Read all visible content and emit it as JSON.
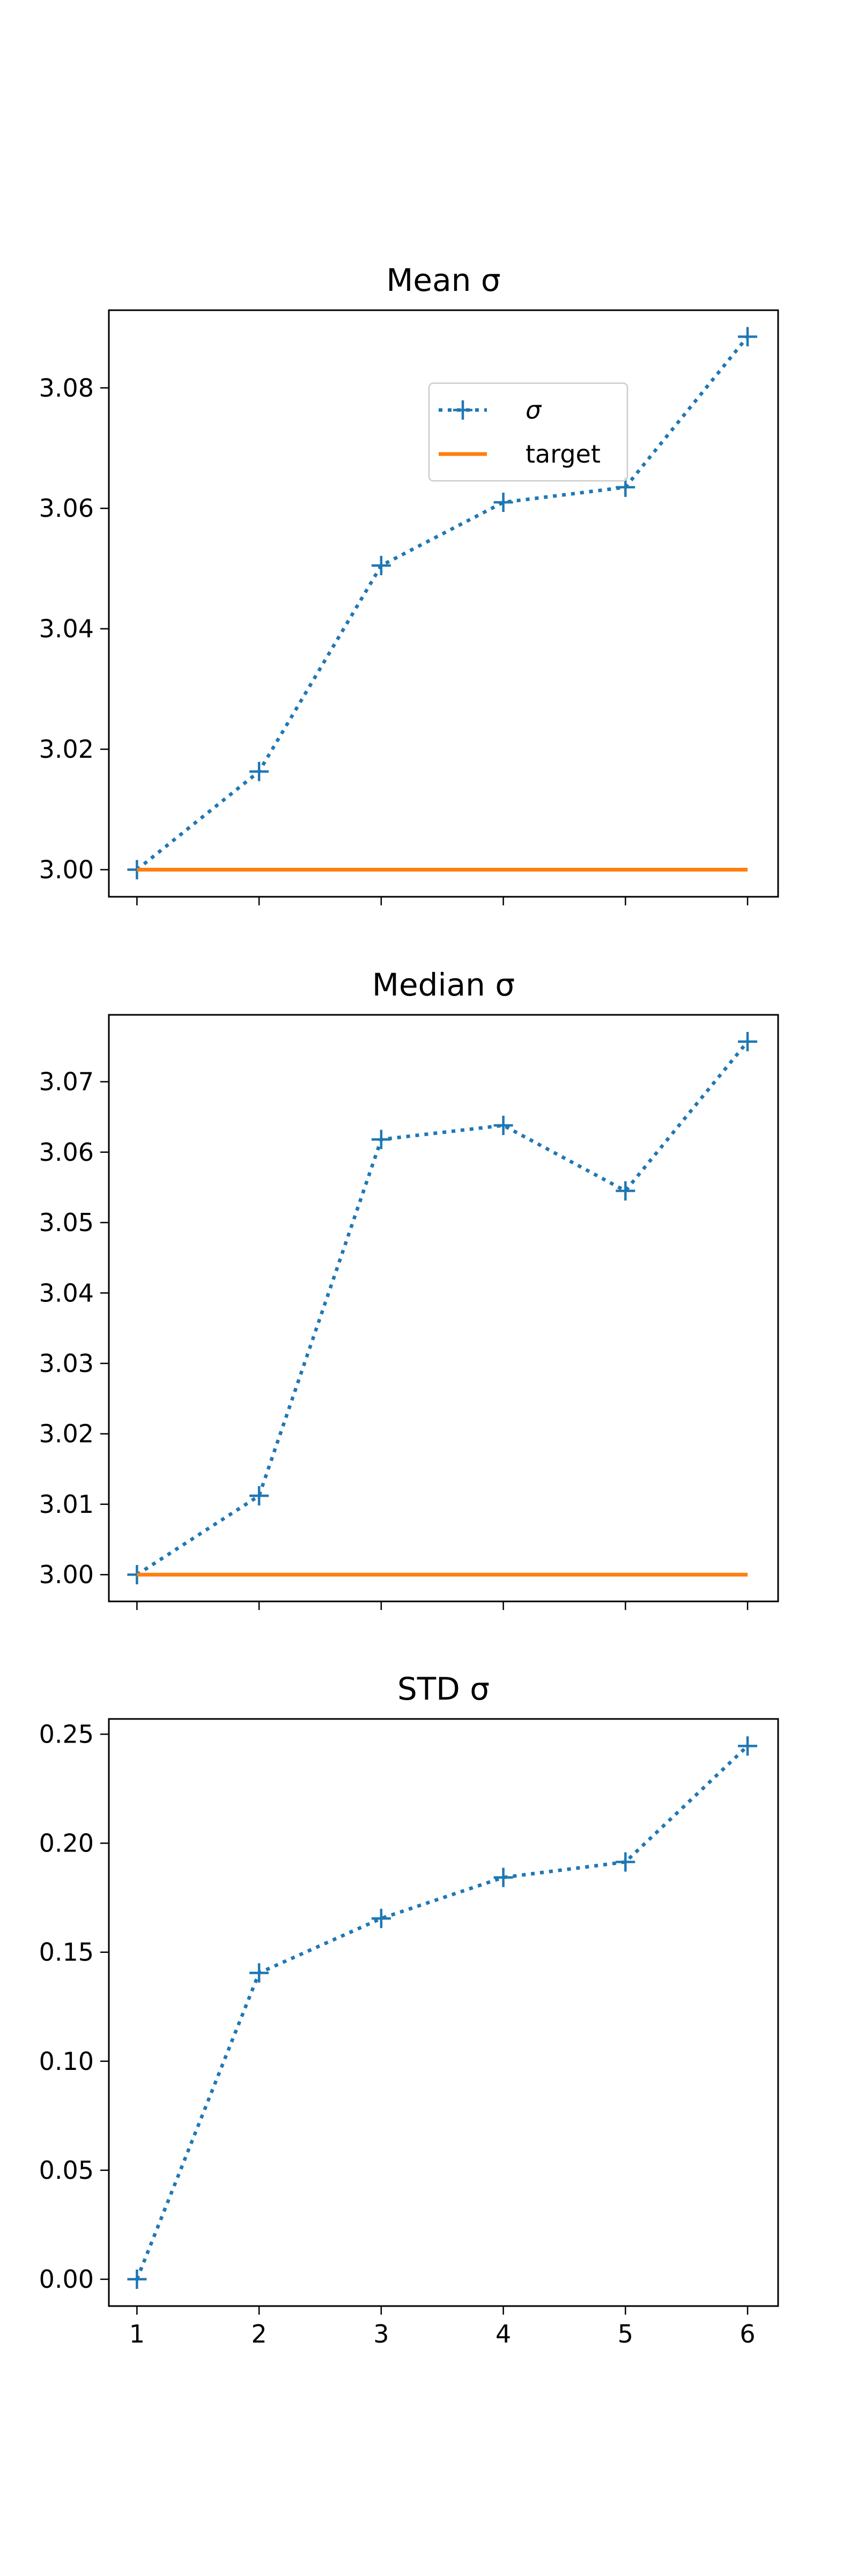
{
  "colors": {
    "sigma": "#1f77b4",
    "target": "#ff7f0e"
  },
  "legend": {
    "sigma_label": "σ",
    "target_label": "target",
    "placement": "upper center"
  },
  "chart_data": [
    {
      "type": "line",
      "title": "Mean σ",
      "x": [
        1,
        2,
        3,
        4,
        5,
        6
      ],
      "series": [
        {
          "name": "σ",
          "style": "dotted",
          "marker": "+",
          "values": [
            3.0,
            3.0163,
            3.0505,
            3.061,
            3.0635,
            3.0885
          ]
        },
        {
          "name": "target",
          "style": "solid",
          "values": [
            3.0,
            3.0,
            3.0,
            3.0,
            3.0,
            3.0
          ]
        }
      ],
      "xticks": [
        "1",
        "2",
        "3",
        "4",
        "5",
        "6"
      ],
      "xlim": [
        0.77,
        6.25
      ],
      "yticks": [
        "3.00",
        "3.02",
        "3.04",
        "3.06",
        "3.08"
      ],
      "ylim": [
        2.9955,
        3.0929
      ],
      "show_xtick_labels": false,
      "legend": true
    },
    {
      "type": "line",
      "title": "Median σ",
      "x": [
        1,
        2,
        3,
        4,
        5,
        6
      ],
      "series": [
        {
          "name": "σ",
          "style": "dotted",
          "marker": "+",
          "values": [
            3.0,
            3.0112,
            3.0618,
            3.0638,
            3.0545,
            3.0757
          ]
        },
        {
          "name": "target",
          "style": "solid",
          "values": [
            3.0,
            3.0,
            3.0,
            3.0,
            3.0,
            3.0
          ]
        }
      ],
      "xticks": [
        "1",
        "2",
        "3",
        "4",
        "5",
        "6"
      ],
      "xlim": [
        0.77,
        6.25
      ],
      "yticks": [
        "3.00",
        "3.01",
        "3.02",
        "3.03",
        "3.04",
        "3.05",
        "3.06",
        "3.07"
      ],
      "ylim": [
        2.9962,
        3.0795
      ],
      "show_xtick_labels": false,
      "legend": false
    },
    {
      "type": "line",
      "title": "STD σ",
      "x": [
        1,
        2,
        3,
        4,
        5,
        6
      ],
      "series": [
        {
          "name": "σ",
          "style": "dotted",
          "marker": "+",
          "values": [
            0.0,
            0.1405,
            0.1655,
            0.1843,
            0.1914,
            0.2446
          ]
        }
      ],
      "xticks": [
        "1",
        "2",
        "3",
        "4",
        "5",
        "6"
      ],
      "xlim": [
        0.77,
        6.25
      ],
      "yticks": [
        "0.00",
        "0.05",
        "0.10",
        "0.15",
        "0.20",
        "0.25"
      ],
      "ylim": [
        -0.0123,
        0.257
      ],
      "show_xtick_labels": true,
      "legend": false
    }
  ]
}
